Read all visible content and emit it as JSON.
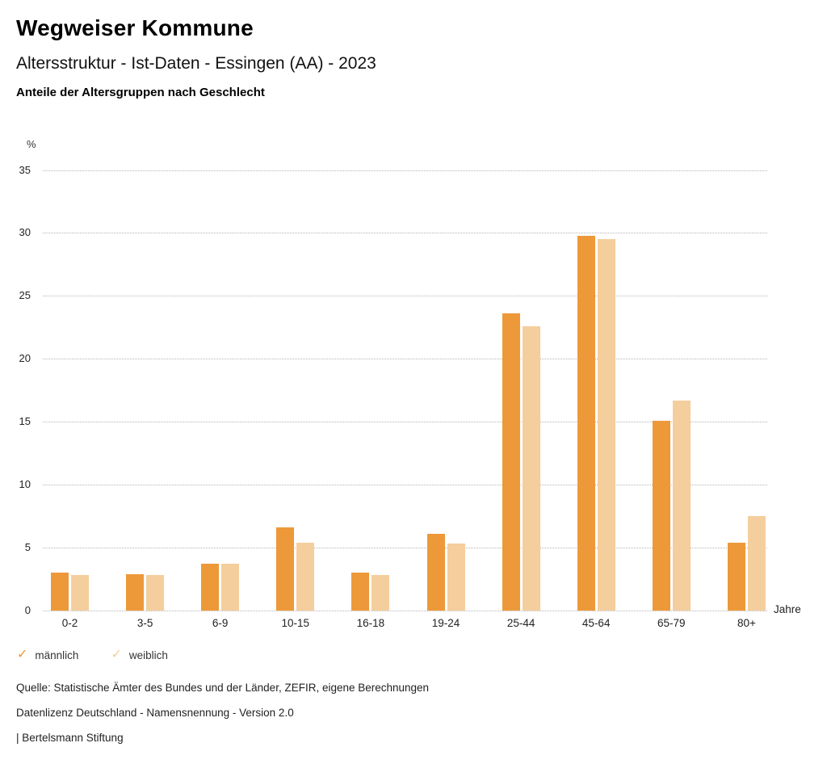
{
  "header": {
    "title": "Wegweiser Kommune",
    "subtitle": "Altersstruktur - Ist-Daten - Essingen (AA) - 2023",
    "subheading": "Anteile der Altersgruppen nach Geschlecht"
  },
  "chart_data": {
    "type": "bar",
    "title": "Anteile der Altersgruppen nach Geschlecht",
    "categories": [
      "0-2",
      "3-5",
      "6-9",
      "10-15",
      "16-18",
      "19-24",
      "25-44",
      "45-64",
      "65-79",
      "80+"
    ],
    "series": [
      {
        "name": "männlich",
        "color": "#ED9939",
        "values": [
          3.0,
          2.9,
          3.7,
          6.6,
          3.0,
          6.1,
          23.6,
          29.8,
          15.1,
          5.4
        ]
      },
      {
        "name": "weiblich",
        "color": "#F5CE9D",
        "values": [
          2.8,
          2.8,
          3.7,
          5.4,
          2.8,
          5.3,
          22.6,
          29.5,
          16.7,
          7.5
        ]
      }
    ],
    "ylabel": "%",
    "xlabel": "Jahre",
    "ylim": [
      0,
      35
    ],
    "yticks": [
      0,
      5,
      10,
      15,
      20,
      25,
      30,
      35
    ],
    "grid": true,
    "gridline_color": "#b5b5b5",
    "legend_position": "bottom-left"
  },
  "footer": {
    "source": "Quelle: Statistische Ämter des Bundes und der Länder, ZEFIR, eigene Berechnungen",
    "license": "Datenlizenz Deutschland - Namensnennung - Version 2.0",
    "attribution": "| Bertelsmann Stiftung"
  }
}
